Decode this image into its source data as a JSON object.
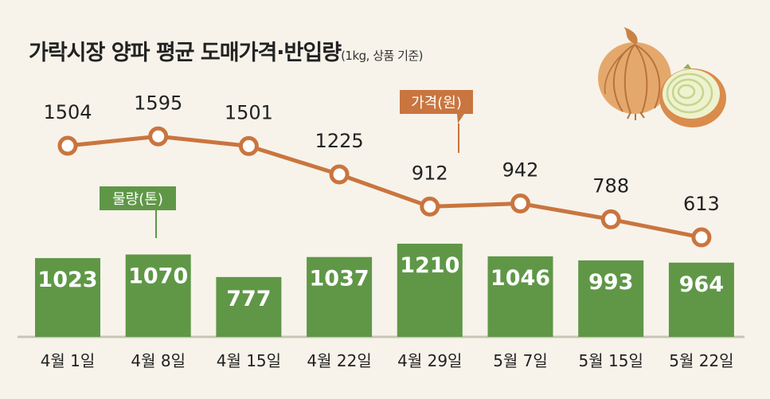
{
  "title": "가락시장 양파 평균 도매가격·반입량",
  "subtitle": "(1kg, 상품 기준)",
  "colors": {
    "background": "#f7f3ea",
    "bar": "#5f9747",
    "line": "#c9753f",
    "price_label_bg": "#c9753f",
    "volume_label_bg": "#5f9747",
    "axis_line": "#c9c4b8"
  },
  "icons": [
    "onion-illustration-icon"
  ],
  "chart_data": {
    "type": "bar+line",
    "categories": [
      "4월 1일",
      "4월 8일",
      "4월 15일",
      "4월 22일",
      "4월 29일",
      "5월 7일",
      "5월 15일",
      "5월 22일"
    ],
    "series": [
      {
        "name": "물량(톤)",
        "type": "bar",
        "values": [
          1023,
          1070,
          777,
          1037,
          1210,
          1046,
          993,
          964
        ]
      },
      {
        "name": "가격(원)",
        "type": "line",
        "values": [
          1504,
          1595,
          1501,
          1225,
          912,
          942,
          788,
          613
        ]
      }
    ],
    "legend": [
      "물량(톤)",
      "가격(원)"
    ],
    "grid": false
  }
}
